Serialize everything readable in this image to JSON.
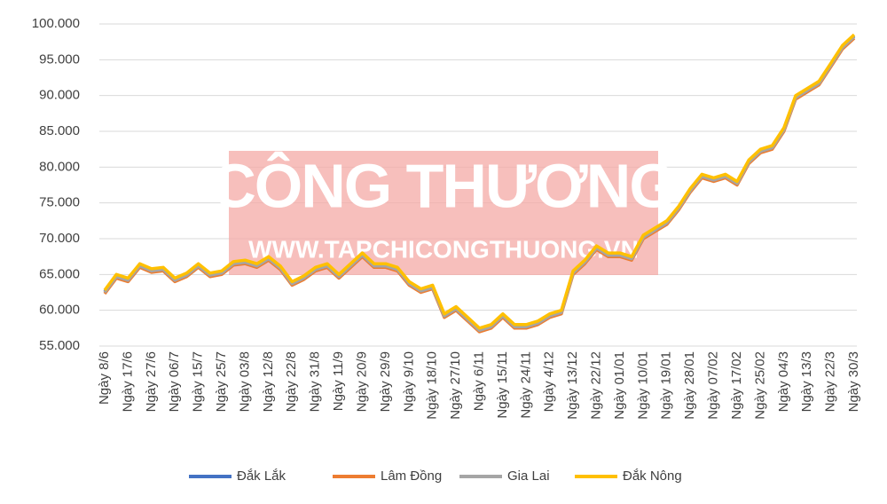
{
  "chart_data": {
    "type": "line",
    "watermark": {
      "title": "CÔNG THƯƠNG",
      "url": "WWW.TAPCHICONGTHUONG.VN"
    },
    "categories": [
      "Ngày 8/6",
      null,
      "Ngày 17/6",
      null,
      "Ngày 27/6",
      null,
      "Ngày 06/7",
      null,
      "Ngày 15/7",
      null,
      "Ngày 25/7",
      null,
      "Ngày 03/8",
      null,
      "Ngày 12/8",
      null,
      "Ngày 22/8",
      null,
      "Ngày 31/8",
      null,
      "Ngày 11/9",
      null,
      "Ngày 20/9",
      null,
      "Ngày 29/9",
      null,
      "Ngày 9/10",
      null,
      "Ngày 18/10",
      null,
      "Ngày 27/10",
      null,
      "Ngày 6/11",
      null,
      "Ngày 15/11",
      null,
      "Ngày 24/11",
      null,
      "Ngày 4/12",
      null,
      "Ngày 13/12",
      null,
      "Ngày 22/12",
      null,
      "Ngày 01/01",
      null,
      "Ngày 10/01",
      null,
      "Ngày 19/01",
      null,
      "Ngày 28/01",
      null,
      "Ngày 07/02",
      null,
      "Ngày 17/02",
      null,
      "Ngày 25/02",
      null,
      "Ngày 04/3",
      null,
      "Ngày 13/3",
      null,
      "Ngày 22/3",
      null,
      "Ngày 30/3"
    ],
    "series": [
      {
        "name": "Đắk Lắk",
        "color": "#4472c4",
        "values": [
          62600,
          64800,
          64300,
          66300,
          65600,
          65800,
          64300,
          65000,
          66300,
          65000,
          65300,
          66600,
          66800,
          66300,
          67300,
          66000,
          63800,
          64600,
          65800,
          66300,
          64800,
          66300,
          67800,
          66300,
          66300,
          65800,
          63800,
          62800,
          63300,
          59300,
          60300,
          58800,
          57300,
          57800,
          59300,
          57800,
          57800,
          58300,
          59300,
          59800,
          65300,
          66800,
          68800,
          67800,
          67800,
          67300,
          70300,
          71300,
          72300,
          74300,
          76800,
          78800,
          78300,
          78800,
          77800,
          80800,
          82300,
          82800,
          85300,
          89800,
          90800,
          91800,
          94300,
          96800,
          98300
        ]
      },
      {
        "name": "Lâm Đồng",
        "color": "#ed7d31",
        "values": [
          62300,
          64500,
          64000,
          66000,
          65300,
          65500,
          64000,
          64700,
          66000,
          64700,
          65000,
          66300,
          66500,
          66000,
          67000,
          65700,
          63500,
          64300,
          65500,
          66000,
          64500,
          66000,
          67500,
          66000,
          66000,
          65500,
          63500,
          62500,
          63000,
          59000,
          60000,
          58500,
          57000,
          57500,
          59000,
          57500,
          57500,
          58000,
          59000,
          59500,
          65000,
          66500,
          68500,
          67500,
          67500,
          67000,
          70000,
          71000,
          72000,
          74000,
          76500,
          78500,
          78000,
          78500,
          77500,
          80500,
          82000,
          82500,
          85000,
          89500,
          90500,
          91500,
          94000,
          96500,
          98000
        ]
      },
      {
        "name": "Gia Lai",
        "color": "#a5a5a5",
        "values": [
          62500,
          64700,
          64200,
          66200,
          65500,
          65700,
          64200,
          64900,
          66200,
          64900,
          65200,
          66500,
          66700,
          66200,
          67200,
          65900,
          63700,
          64500,
          65700,
          66200,
          64700,
          66200,
          67700,
          66200,
          66200,
          65700,
          63700,
          62700,
          63200,
          59200,
          60200,
          58700,
          57200,
          57700,
          59200,
          57700,
          57700,
          58200,
          59200,
          59700,
          65200,
          66700,
          68700,
          67700,
          67700,
          67200,
          70200,
          71200,
          72200,
          74200,
          76700,
          78700,
          78200,
          78700,
          77700,
          80700,
          82200,
          82700,
          85200,
          89700,
          90700,
          91700,
          94200,
          96700,
          98200
        ]
      },
      {
        "name": "Đắk Nông",
        "color": "#ffc000",
        "values": [
          62800,
          65000,
          64500,
          66500,
          65800,
          66000,
          64500,
          65200,
          66500,
          65200,
          65500,
          66800,
          67000,
          66500,
          67500,
          66200,
          64000,
          64800,
          66000,
          66500,
          65000,
          66500,
          68000,
          66500,
          66500,
          66000,
          64000,
          63000,
          63500,
          59500,
          60500,
          59000,
          57500,
          58000,
          59500,
          58000,
          58000,
          58500,
          59500,
          60000,
          65500,
          67000,
          69000,
          68000,
          68000,
          67500,
          70500,
          71500,
          72500,
          74500,
          77000,
          79000,
          78500,
          79000,
          78000,
          81000,
          82500,
          83000,
          85500,
          90000,
          91000,
          92000,
          94500,
          97000,
          98500
        ]
      }
    ],
    "ylim": [
      55000,
      100000
    ],
    "yticks": [
      {
        "value": 55000,
        "label": "55.000"
      },
      {
        "value": 60000,
        "label": "60.000"
      },
      {
        "value": 65000,
        "label": "65.000"
      },
      {
        "value": 70000,
        "label": "70.000"
      },
      {
        "value": 75000,
        "label": "75.000"
      },
      {
        "value": 80000,
        "label": "80.000"
      },
      {
        "value": 85000,
        "label": "85.000"
      },
      {
        "value": 90000,
        "label": "90.000"
      },
      {
        "value": 95000,
        "label": "95.000"
      },
      {
        "value": 100000,
        "label": "100.000"
      }
    ],
    "grid": true,
    "legend": "bottom"
  }
}
